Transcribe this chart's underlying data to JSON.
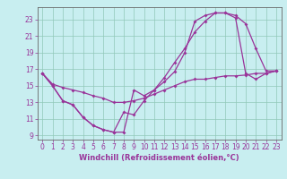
{
  "background_color": "#c8eef0",
  "grid_color": "#90c8b8",
  "line_color": "#993399",
  "spine_color": "#666666",
  "xlim": [
    -0.5,
    23.5
  ],
  "ylim": [
    8.5,
    24.5
  ],
  "xticks": [
    0,
    1,
    2,
    3,
    4,
    5,
    6,
    7,
    8,
    9,
    10,
    11,
    12,
    13,
    14,
    15,
    16,
    17,
    18,
    19,
    20,
    21,
    22,
    23
  ],
  "yticks": [
    9,
    11,
    13,
    15,
    17,
    19,
    21,
    23
  ],
  "xlabel": "Windchill (Refroidissement éolien,°C)",
  "curve1_x": [
    0,
    1,
    2,
    3,
    4,
    5,
    6,
    7,
    8,
    9,
    10,
    11,
    12,
    13,
    14,
    15,
    16,
    17,
    18,
    19,
    20,
    21,
    22,
    23
  ],
  "curve1_y": [
    16.5,
    15.0,
    13.2,
    12.7,
    11.2,
    10.2,
    9.7,
    9.4,
    9.4,
    14.5,
    13.8,
    14.5,
    15.5,
    16.7,
    19.0,
    22.8,
    23.5,
    23.8,
    23.8,
    23.2,
    16.5,
    15.8,
    16.5,
    16.8
  ],
  "curve2_x": [
    0,
    1,
    2,
    3,
    4,
    5,
    6,
    7,
    8,
    9,
    10,
    11,
    12,
    13,
    14,
    15,
    16,
    17,
    18,
    19,
    20,
    21,
    22,
    23
  ],
  "curve2_y": [
    16.5,
    15.0,
    13.2,
    12.7,
    11.2,
    10.2,
    9.7,
    9.4,
    11.8,
    11.5,
    13.2,
    14.5,
    16.0,
    17.8,
    19.5,
    21.5,
    22.8,
    23.8,
    23.8,
    23.5,
    22.5,
    19.5,
    16.8,
    16.8
  ],
  "curve3_x": [
    0,
    1,
    2,
    3,
    4,
    5,
    6,
    7,
    8,
    9,
    10,
    11,
    12,
    13,
    14,
    15,
    16,
    17,
    18,
    19,
    20,
    21,
    22,
    23
  ],
  "curve3_y": [
    16.5,
    15.2,
    14.8,
    14.5,
    14.2,
    13.8,
    13.5,
    13.0,
    13.0,
    13.2,
    13.5,
    14.0,
    14.5,
    15.0,
    15.5,
    15.8,
    15.8,
    16.0,
    16.2,
    16.2,
    16.3,
    16.5,
    16.5,
    16.8
  ],
  "tick_fontsize": 5.5,
  "xlabel_fontsize": 6.0
}
